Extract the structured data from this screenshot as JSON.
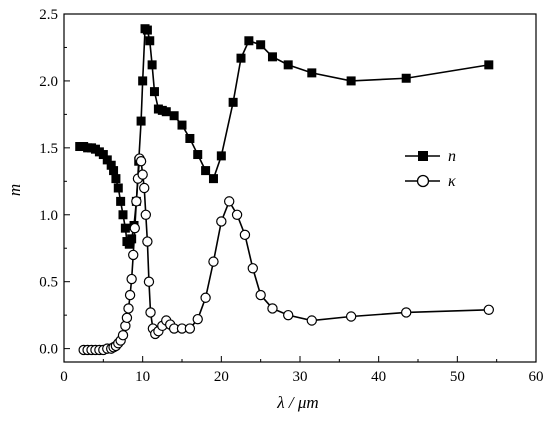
{
  "chart_data": {
    "type": "line",
    "xlabel": "λ / μm",
    "ylabel": "m",
    "xlim": [
      0,
      60
    ],
    "ylim": [
      -0.1,
      2.5
    ],
    "xticks": [
      0,
      10,
      20,
      30,
      40,
      50,
      60
    ],
    "yticks": [
      0.0,
      0.5,
      1.0,
      1.5,
      2.0,
      2.5
    ],
    "xtick_labels": [
      "0",
      "10",
      "20",
      "30",
      "40",
      "50",
      "60"
    ],
    "ytick_labels": [
      "0.0",
      "0.5",
      "1.0",
      "1.5",
      "2.0",
      "2.5"
    ],
    "grid": false,
    "legend_position": "right",
    "series": [
      {
        "name": "n",
        "marker": "filled-square",
        "color": "#000000",
        "x": [
          2.0,
          2.5,
          3.0,
          3.5,
          4.0,
          4.5,
          5.0,
          5.5,
          6.0,
          6.3,
          6.6,
          6.9,
          7.2,
          7.5,
          7.8,
          8.0,
          8.3,
          8.6,
          8.9,
          9.2,
          9.5,
          9.8,
          10.0,
          10.3,
          10.6,
          10.9,
          11.2,
          11.5,
          12.0,
          12.5,
          13.0,
          14.0,
          15.0,
          16.0,
          17.0,
          18.0,
          19.0,
          20.0,
          21.5,
          22.5,
          23.5,
          25.0,
          26.5,
          28.5,
          31.5,
          36.5,
          43.5,
          54.0
        ],
        "values": [
          1.51,
          1.51,
          1.5,
          1.5,
          1.49,
          1.47,
          1.45,
          1.41,
          1.37,
          1.33,
          1.27,
          1.2,
          1.1,
          1.0,
          0.9,
          0.8,
          0.78,
          0.82,
          0.92,
          1.1,
          1.4,
          1.7,
          2.0,
          2.39,
          2.38,
          2.3,
          2.12,
          1.92,
          1.79,
          1.78,
          1.77,
          1.74,
          1.67,
          1.57,
          1.45,
          1.33,
          1.27,
          1.44,
          1.84,
          2.17,
          2.3,
          2.27,
          2.18,
          2.12,
          2.06,
          2.0,
          2.02,
          2.12
        ]
      },
      {
        "name": "κ",
        "marker": "open-circle",
        "color": "#000000",
        "x": [
          2.5,
          3.0,
          3.5,
          4.0,
          4.5,
          5.0,
          5.5,
          6.0,
          6.3,
          6.6,
          6.9,
          7.2,
          7.5,
          7.8,
          8.0,
          8.2,
          8.4,
          8.6,
          8.8,
          9.0,
          9.2,
          9.4,
          9.6,
          9.8,
          10.0,
          10.2,
          10.4,
          10.6,
          10.8,
          11.0,
          11.3,
          11.6,
          12.0,
          12.5,
          13.0,
          13.5,
          14.0,
          15.0,
          16.0,
          17.0,
          18.0,
          19.0,
          20.0,
          21.0,
          22.0,
          23.0,
          24.0,
          25.0,
          26.5,
          28.5,
          31.5,
          36.5,
          43.5,
          54.0
        ],
        "values": [
          -0.01,
          -0.01,
          -0.01,
          -0.01,
          -0.01,
          -0.01,
          0.0,
          0.0,
          0.01,
          0.02,
          0.04,
          0.06,
          0.1,
          0.17,
          0.23,
          0.3,
          0.4,
          0.52,
          0.7,
          0.9,
          1.1,
          1.27,
          1.42,
          1.4,
          1.3,
          1.2,
          1.0,
          0.8,
          0.5,
          0.27,
          0.15,
          0.11,
          0.13,
          0.17,
          0.21,
          0.18,
          0.15,
          0.15,
          0.15,
          0.22,
          0.38,
          0.65,
          0.95,
          1.1,
          1.0,
          0.85,
          0.6,
          0.4,
          0.3,
          0.25,
          0.21,
          0.24,
          0.27,
          0.29
        ]
      }
    ]
  }
}
